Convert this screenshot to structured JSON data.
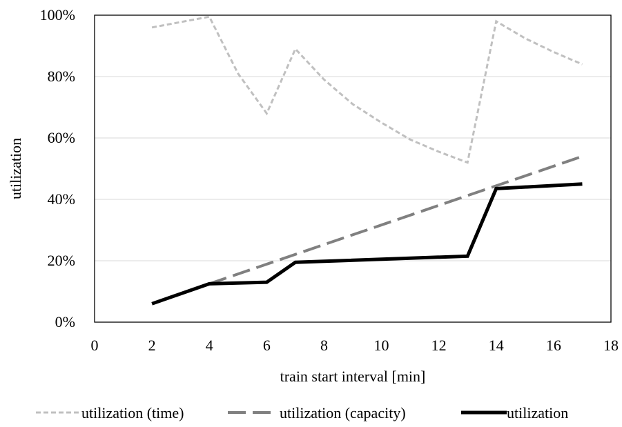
{
  "chart_data": {
    "type": "line",
    "title": "",
    "xlabel": "train start interval [min]",
    "ylabel": "utilization",
    "xlim": [
      0,
      18
    ],
    "ylim": [
      0,
      100
    ],
    "x_ticks": [
      "0",
      "2",
      "4",
      "6",
      "8",
      "10",
      "12",
      "14",
      "16",
      "18"
    ],
    "y_ticks": [
      "0%",
      "20%",
      "40%",
      "60%",
      "80%",
      "100%"
    ],
    "grid": "horizontal",
    "legend_position": "bottom",
    "series": [
      {
        "name": "utilization (time)",
        "color": "#c0c0c0",
        "style": "dotted",
        "x": [
          2,
          4,
          5,
          6,
          7,
          8,
          9,
          10,
          11,
          12,
          13,
          14,
          15,
          16,
          17
        ],
        "y": [
          96,
          99.5,
          81,
          68,
          89,
          79,
          71,
          65,
          59.5,
          55.5,
          52,
          98,
          92.5,
          88,
          84
        ]
      },
      {
        "name": "utilization (capacity)",
        "color": "#808080",
        "style": "dashed",
        "x": [
          4,
          17
        ],
        "y": [
          12.5,
          54
        ]
      },
      {
        "name": "utilization",
        "color": "#000000",
        "style": "solid",
        "x": [
          2,
          4,
          6,
          7,
          13,
          14,
          17
        ],
        "y": [
          6,
          12.5,
          13,
          19.5,
          21.5,
          43.5,
          45
        ]
      }
    ]
  }
}
